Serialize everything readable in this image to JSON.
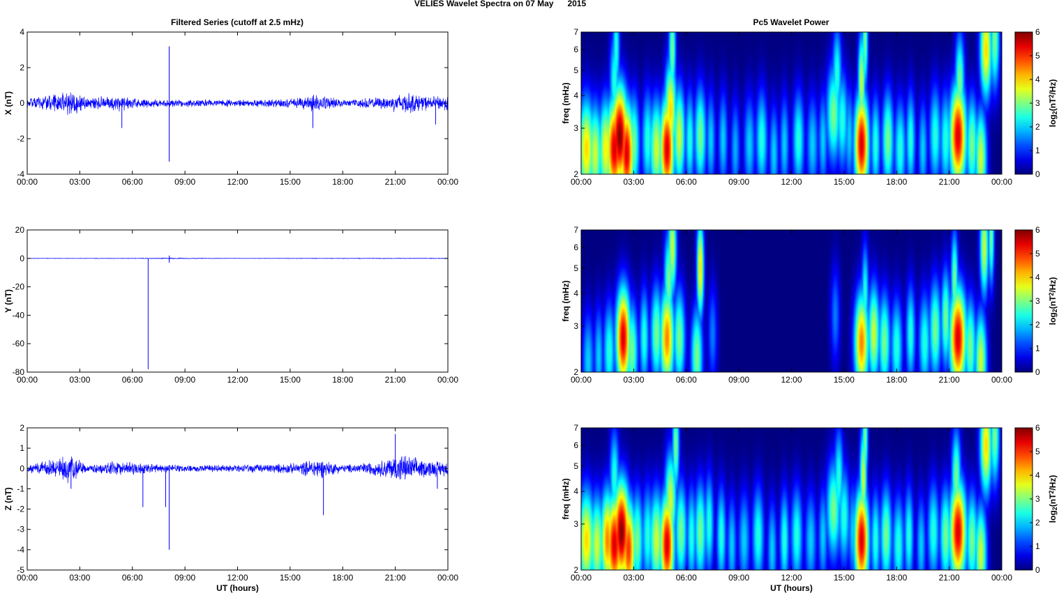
{
  "figure": {
    "title": "VELIES Wavelet Spectra on 07 May      2015",
    "left_title": "Filtered Series (cutoff at 2.5 mHz)",
    "right_title": "Pc5 Wavelet Power"
  },
  "chart_data": [
    {
      "type": "line",
      "name": "filtered-x",
      "ylabel": "X (nT)",
      "xlabel": "",
      "ylim": [
        -4,
        4
      ],
      "yticks": [
        -4,
        -2,
        0,
        2,
        4
      ],
      "xticks": [
        "00:00",
        "03:00",
        "06:00",
        "09:00",
        "12:00",
        "15:00",
        "18:00",
        "21:00",
        "00:00"
      ],
      "xlim_hours": [
        0,
        24
      ],
      "color": "#0000ff",
      "spikes": [
        {
          "t": 8.1,
          "y": 3.2
        },
        {
          "t": 8.1,
          "y": -3.3
        },
        {
          "t": 16.3,
          "y": -1.4
        },
        {
          "t": 5.4,
          "y": -1.4
        },
        {
          "t": 23.3,
          "y": -1.2
        }
      ],
      "noise_envelope": [
        [
          0,
          0.3
        ],
        [
          1.5,
          0.5
        ],
        [
          2.5,
          0.9
        ],
        [
          3.5,
          0.3
        ],
        [
          5,
          0.6
        ],
        [
          6,
          0.3
        ],
        [
          8,
          0.25
        ],
        [
          12,
          0.2
        ],
        [
          15.5,
          0.3
        ],
        [
          16.5,
          0.6
        ],
        [
          18,
          0.2
        ],
        [
          20.5,
          0.4
        ],
        [
          21.5,
          0.7
        ],
        [
          23,
          0.4
        ],
        [
          24,
          0.5
        ]
      ]
    },
    {
      "type": "line",
      "name": "filtered-y",
      "ylabel": "Y (nT)",
      "xlabel": "",
      "ylim": [
        -80,
        20
      ],
      "yticks": [
        -80,
        -60,
        -40,
        -20,
        0,
        20
      ],
      "xticks": [
        "00:00",
        "03:00",
        "06:00",
        "09:00",
        "12:00",
        "15:00",
        "18:00",
        "21:00",
        "00:00"
      ],
      "xlim_hours": [
        0,
        24
      ],
      "color": "#0000ff",
      "spikes": [
        {
          "t": 6.9,
          "y": -78
        },
        {
          "t": 8.1,
          "y": -3
        },
        {
          "t": 8.1,
          "y": 2
        }
      ],
      "noise_envelope": [
        [
          0,
          0.3
        ],
        [
          6,
          0.4
        ],
        [
          8,
          0.8
        ],
        [
          12,
          0.3
        ],
        [
          20,
          0.5
        ],
        [
          24,
          0.4
        ]
      ]
    },
    {
      "type": "line",
      "name": "filtered-z",
      "ylabel": "Z (nT)",
      "xlabel": "UT (hours)",
      "ylim": [
        -5,
        2
      ],
      "yticks": [
        -5,
        -4,
        -3,
        -2,
        -1,
        0,
        1,
        2
      ],
      "xticks": [
        "00:00",
        "03:00",
        "06:00",
        "09:00",
        "12:00",
        "15:00",
        "18:00",
        "21:00",
        "00:00"
      ],
      "xlim_hours": [
        0,
        24
      ],
      "color": "#0000ff",
      "spikes": [
        {
          "t": 8.1,
          "y": -4.0
        },
        {
          "t": 6.6,
          "y": -1.9
        },
        {
          "t": 7.9,
          "y": -1.9
        },
        {
          "t": 16.9,
          "y": -2.3
        },
        {
          "t": 21.0,
          "y": 1.7
        },
        {
          "t": 23.4,
          "y": -1.0
        },
        {
          "t": 2.5,
          "y": -1.0
        }
      ],
      "noise_envelope": [
        [
          0,
          0.2
        ],
        [
          1.5,
          0.5
        ],
        [
          2.5,
          0.8
        ],
        [
          3.5,
          0.2
        ],
        [
          5,
          0.4
        ],
        [
          8,
          0.2
        ],
        [
          12,
          0.2
        ],
        [
          15.5,
          0.3
        ],
        [
          16.5,
          0.6
        ],
        [
          18,
          0.2
        ],
        [
          20,
          0.4
        ],
        [
          21.3,
          0.8
        ],
        [
          22.5,
          0.5
        ],
        [
          24,
          0.4
        ]
      ]
    },
    {
      "type": "heatmap",
      "name": "wavelet-x",
      "ylabel": "freq (mHz)",
      "xlabel": "",
      "ylim": [
        2,
        7
      ],
      "yscale": "log",
      "yticks": [
        2,
        3,
        4,
        5,
        6,
        7
      ],
      "xticks": [
        "00:00",
        "03:00",
        "06:00",
        "09:00",
        "12:00",
        "15:00",
        "18:00",
        "21:00",
        "00:00"
      ],
      "xlim_hours": [
        0,
        24
      ],
      "colorbar": {
        "label_base": "log",
        "label_sub": "2",
        "label_mid": "(nT",
        "label_sup": "2",
        "label_end": "/Hz)",
        "range": [
          0,
          6
        ],
        "ticks": [
          0,
          1,
          2,
          3,
          4,
          5,
          6
        ]
      },
      "blobs": [
        [
          0.3,
          2.5,
          4,
          0.35
        ],
        [
          0.8,
          2.4,
          3.5,
          0.3
        ],
        [
          1.4,
          2.5,
          3.8,
          0.3
        ],
        [
          1.9,
          2.5,
          5.5,
          0.35
        ],
        [
          2.2,
          2.8,
          6,
          0.35
        ],
        [
          2.6,
          2.4,
          5.5,
          0.3
        ],
        [
          3.0,
          2.6,
          3,
          0.25
        ],
        [
          1.9,
          4.5,
          2.5,
          0.2
        ],
        [
          2.0,
          6.0,
          2.5,
          0.15
        ],
        [
          3.8,
          2.7,
          2.5,
          0.25
        ],
        [
          4.3,
          2.5,
          3.5,
          0.3
        ],
        [
          4.9,
          2.5,
          5.5,
          0.3
        ],
        [
          5.1,
          3.5,
          4,
          0.25
        ],
        [
          5.2,
          6.0,
          3,
          0.15
        ],
        [
          5.6,
          2.8,
          3.5,
          0.25
        ],
        [
          6.2,
          2.7,
          2.5,
          0.2
        ],
        [
          6.8,
          2.8,
          3,
          0.25
        ],
        [
          7.4,
          2.7,
          2,
          0.2
        ],
        [
          8.1,
          2.7,
          2,
          0.2
        ],
        [
          8.8,
          2.5,
          1.8,
          0.2
        ],
        [
          9.6,
          2.6,
          2,
          0.25
        ],
        [
          10.3,
          2.7,
          2.5,
          0.25
        ],
        [
          11.0,
          2.4,
          2,
          0.2
        ],
        [
          11.6,
          2.6,
          2,
          0.2
        ],
        [
          12.4,
          2.7,
          2.5,
          0.25
        ],
        [
          13.2,
          2.6,
          2,
          0.25
        ],
        [
          13.8,
          2.7,
          2,
          0.2
        ],
        [
          14.4,
          3.4,
          3,
          0.3
        ],
        [
          14.6,
          4.8,
          2.5,
          0.2
        ],
        [
          14.9,
          3.2,
          2.5,
          0.25
        ],
        [
          15.3,
          2.8,
          2,
          0.2
        ],
        [
          16.0,
          2.6,
          5.5,
          0.3
        ],
        [
          16.0,
          4.5,
          3.5,
          0.15
        ],
        [
          16.2,
          6.5,
          3,
          0.12
        ],
        [
          16.8,
          2.6,
          2.5,
          0.2
        ],
        [
          17.5,
          2.7,
          3,
          0.25
        ],
        [
          18.2,
          2.5,
          2.5,
          0.25
        ],
        [
          18.8,
          2.7,
          2.5,
          0.2
        ],
        [
          19.5,
          2.5,
          2,
          0.2
        ],
        [
          20.2,
          2.8,
          2.5,
          0.25
        ],
        [
          20.8,
          2.7,
          2.5,
          0.25
        ],
        [
          21.5,
          2.8,
          5.5,
          0.35
        ],
        [
          21.6,
          4.5,
          3,
          0.2
        ],
        [
          22.3,
          2.6,
          3,
          0.25
        ],
        [
          22.8,
          2.3,
          3.5,
          0.25
        ],
        [
          23.1,
          6.0,
          4,
          0.25
        ],
        [
          23.6,
          6.5,
          3,
          0.2
        ]
      ]
    },
    {
      "type": "heatmap",
      "name": "wavelet-y",
      "ylabel": "freq (mHz)",
      "xlabel": "",
      "ylim": [
        2,
        7
      ],
      "yscale": "log",
      "yticks": [
        2,
        3,
        4,
        5,
        6,
        7
      ],
      "xticks": [
        "00:00",
        "03:00",
        "06:00",
        "09:00",
        "12:00",
        "15:00",
        "18:00",
        "21:00",
        "00:00"
      ],
      "xlim_hours": [
        0,
        24
      ],
      "colorbar": {
        "label_base": "log",
        "label_sub": "2",
        "label_mid": "(nT",
        "label_sup": "2",
        "label_end": "/Hz)",
        "range": [
          0,
          6
        ],
        "ticks": [
          0,
          1,
          2,
          3,
          4,
          5,
          6
        ]
      },
      "blobs": [
        [
          0.4,
          2.2,
          2,
          0.25
        ],
        [
          1.0,
          2.3,
          2,
          0.2
        ],
        [
          1.6,
          2.4,
          2.5,
          0.25
        ],
        [
          2.4,
          2.7,
          5.5,
          0.3
        ],
        [
          2.9,
          2.4,
          3,
          0.25
        ],
        [
          3.6,
          2.7,
          2.5,
          0.2
        ],
        [
          4.3,
          2.8,
          3,
          0.25
        ],
        [
          4.9,
          2.7,
          4.5,
          0.3
        ],
        [
          5.0,
          4.5,
          3,
          0.2
        ],
        [
          5.2,
          6.0,
          3.5,
          0.18
        ],
        [
          5.6,
          2.7,
          3,
          0.25
        ],
        [
          6.6,
          2.3,
          3,
          0.25
        ],
        [
          6.8,
          5.0,
          4,
          0.15
        ],
        [
          7.5,
          2.8,
          1.5,
          0.2
        ],
        [
          14.5,
          3.3,
          1.5,
          0.2
        ],
        [
          16.0,
          2.6,
          4.5,
          0.3
        ],
        [
          16.2,
          4.0,
          2.5,
          0.15
        ],
        [
          16.7,
          2.8,
          3.5,
          0.25
        ],
        [
          17.3,
          2.6,
          3,
          0.25
        ],
        [
          18.0,
          2.5,
          2.5,
          0.25
        ],
        [
          18.8,
          2.8,
          2.5,
          0.2
        ],
        [
          19.6,
          2.6,
          2.5,
          0.25
        ],
        [
          20.2,
          2.9,
          3,
          0.25
        ],
        [
          20.8,
          3.2,
          3,
          0.2
        ],
        [
          21.5,
          2.7,
          5.5,
          0.35
        ],
        [
          21.3,
          4.5,
          3,
          0.15
        ],
        [
          22.2,
          2.5,
          3,
          0.25
        ],
        [
          22.8,
          2.2,
          3.5,
          0.25
        ],
        [
          23.0,
          6.0,
          3.5,
          0.18
        ],
        [
          23.4,
          6.6,
          3,
          0.12
        ]
      ]
    },
    {
      "type": "heatmap",
      "name": "wavelet-z",
      "ylabel": "freq (mHz)",
      "xlabel": "UT (hours)",
      "ylim": [
        2,
        7
      ],
      "yscale": "log",
      "yticks": [
        2,
        3,
        4,
        5,
        6,
        7
      ],
      "xticks": [
        "00:00",
        "03:00",
        "06:00",
        "09:00",
        "12:00",
        "15:00",
        "18:00",
        "21:00",
        "00:00"
      ],
      "xlim_hours": [
        0,
        24
      ],
      "colorbar": {
        "label_base": "log",
        "label_sub": "2",
        "label_mid": "(nT",
        "label_sup": "2",
        "label_end": "/Hz)",
        "range": [
          0,
          6
        ],
        "ticks": [
          0,
          1,
          2,
          3,
          4,
          5,
          6
        ]
      },
      "blobs": [
        [
          0.3,
          2.6,
          4,
          0.35
        ],
        [
          0.9,
          2.5,
          3.5,
          0.3
        ],
        [
          1.5,
          2.6,
          4.5,
          0.3
        ],
        [
          1.9,
          2.5,
          5.5,
          0.35
        ],
        [
          2.3,
          2.8,
          6,
          0.35
        ],
        [
          2.7,
          2.4,
          5,
          0.3
        ],
        [
          3.2,
          2.6,
          3,
          0.25
        ],
        [
          1.9,
          4.5,
          2.5,
          0.2
        ],
        [
          3.8,
          2.7,
          2.5,
          0.25
        ],
        [
          4.3,
          2.6,
          3.5,
          0.3
        ],
        [
          4.9,
          2.5,
          5.5,
          0.3
        ],
        [
          5.1,
          3.7,
          3.5,
          0.25
        ],
        [
          5.4,
          6.0,
          3,
          0.15
        ],
        [
          5.7,
          2.8,
          3,
          0.25
        ],
        [
          6.3,
          2.7,
          2.5,
          0.2
        ],
        [
          6.8,
          2.8,
          3,
          0.25
        ],
        [
          7.3,
          3.0,
          2.5,
          0.2
        ],
        [
          8.0,
          2.7,
          2.5,
          0.2
        ],
        [
          8.6,
          2.5,
          2,
          0.2
        ],
        [
          9.3,
          2.6,
          2,
          0.25
        ],
        [
          10.1,
          2.7,
          2.5,
          0.25
        ],
        [
          10.9,
          2.4,
          2,
          0.2
        ],
        [
          11.6,
          2.6,
          2.5,
          0.2
        ],
        [
          12.3,
          2.7,
          2.5,
          0.25
        ],
        [
          13.1,
          2.6,
          2,
          0.25
        ],
        [
          13.8,
          2.7,
          2,
          0.2
        ],
        [
          14.4,
          3.4,
          3,
          0.3
        ],
        [
          14.7,
          4.5,
          2.5,
          0.2
        ],
        [
          15.0,
          3.2,
          2.5,
          0.25
        ],
        [
          15.5,
          2.8,
          2,
          0.2
        ],
        [
          16.0,
          2.6,
          5.5,
          0.3
        ],
        [
          16.1,
          4.5,
          3.5,
          0.15
        ],
        [
          16.2,
          6.5,
          3,
          0.12
        ],
        [
          16.8,
          2.6,
          2.5,
          0.2
        ],
        [
          17.4,
          2.7,
          3,
          0.25
        ],
        [
          18.1,
          2.5,
          2.5,
          0.25
        ],
        [
          18.7,
          2.7,
          2.5,
          0.2
        ],
        [
          19.4,
          2.5,
          2,
          0.2
        ],
        [
          20.1,
          2.8,
          2.5,
          0.25
        ],
        [
          20.8,
          2.7,
          3,
          0.25
        ],
        [
          21.5,
          2.8,
          5.5,
          0.35
        ],
        [
          21.4,
          4.5,
          3,
          0.2
        ],
        [
          22.3,
          2.6,
          3,
          0.25
        ],
        [
          22.8,
          2.3,
          3.5,
          0.25
        ],
        [
          23.1,
          6.0,
          4,
          0.25
        ],
        [
          23.6,
          6.5,
          3,
          0.2
        ]
      ]
    }
  ]
}
